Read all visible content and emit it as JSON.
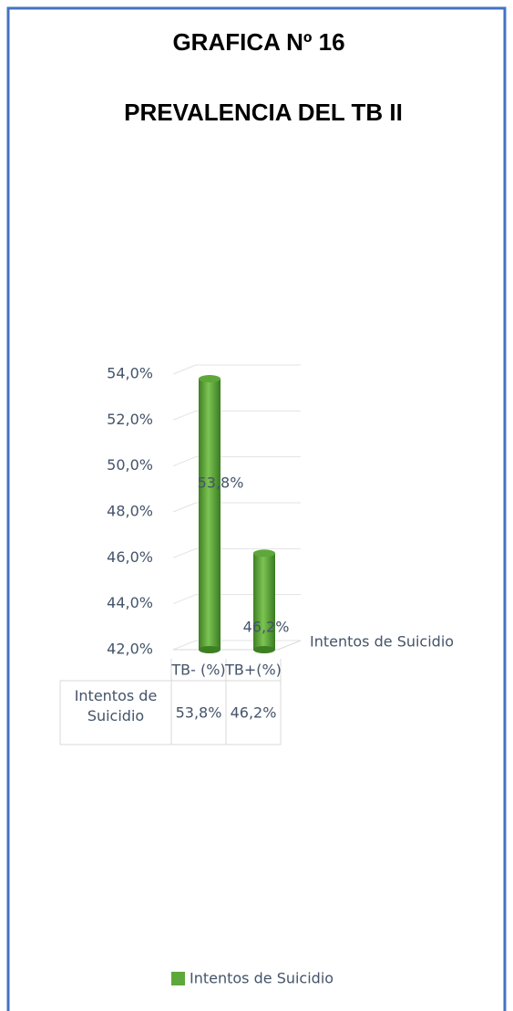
{
  "chart_data": {
    "type": "bar",
    "title": "GRAFICA Nº 16",
    "subtitle": "PREVALENCIA DEL TB II",
    "categories": [
      "TB- (%)",
      "TB+(%)"
    ],
    "series": [
      {
        "name": "Intentos de Suicidio",
        "color": "#5ea73a",
        "values": [
          53.8,
          46.2
        ],
        "value_labels": [
          "53,8%",
          "46,2%"
        ]
      }
    ],
    "ylim": [
      42,
      54
    ],
    "yticks": [
      {
        "value": 42,
        "label": "42,0%"
      },
      {
        "value": 44,
        "label": "44,0%"
      },
      {
        "value": 46,
        "label": "46,0%"
      },
      {
        "value": 48,
        "label": "48,0%"
      },
      {
        "value": 50,
        "label": "50,0%"
      },
      {
        "value": 52,
        "label": "52,0%"
      },
      {
        "value": 54,
        "label": "54,0%"
      }
    ],
    "grid": true,
    "legend": "bottom",
    "data_table": true
  }
}
